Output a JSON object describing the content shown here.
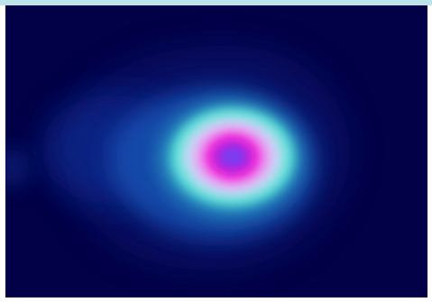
{
  "chart_data": {
    "type": "heatmap",
    "title": "",
    "xlabel": "",
    "ylabel": "",
    "grid": false,
    "legend": "none",
    "colormap": [
      "#020046",
      "#0a1a7a",
      "#1450b0",
      "#2ea7c8",
      "#5fe3d6",
      "#c8d8f6",
      "#ee9af0",
      "#f040e0",
      "#e610d0",
      "#7a3cf0"
    ],
    "background_color": "#020046",
    "peak": {
      "x": 0.53,
      "y": 0.53,
      "value": 1.0,
      "color": "#7a3cf0"
    }
  }
}
